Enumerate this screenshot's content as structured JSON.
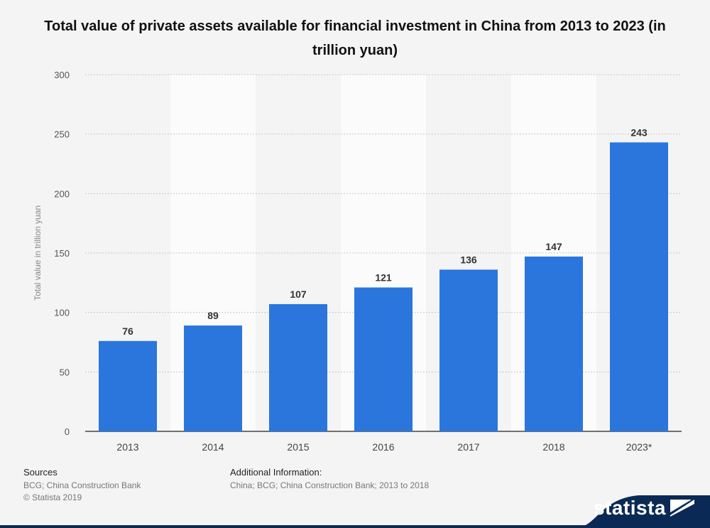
{
  "chart_data": {
    "type": "bar",
    "title": "Total value of private assets available for financial investment in China from 2013 to 2023 (in trillion yuan)",
    "ylabel": "Total value in trillion yuan",
    "xlabel": "",
    "categories": [
      "2013",
      "2014",
      "2015",
      "2016",
      "2017",
      "2018",
      "2023*"
    ],
    "values": [
      76,
      89,
      107,
      121,
      136,
      147,
      243
    ],
    "data_labels": [
      "76",
      "89",
      "107",
      "121",
      "136",
      "147",
      "243"
    ],
    "yticks": [
      "0",
      "50",
      "100",
      "150",
      "200",
      "250",
      "300"
    ],
    "ylim": [
      0,
      300
    ],
    "grid": true,
    "bar_color": "#2a76dd"
  },
  "footer": {
    "sources_label": "Sources",
    "sources_text": "BCG; China Construction Bank",
    "copyright": "© Statista 2019",
    "additional_label": "Additional Information:",
    "additional_text": "China; BCG; China Construction Bank; 2013 to 2018"
  },
  "brand": {
    "name": "statista",
    "logo_icon": "statista-logo-icon",
    "color": "#0a2a55"
  }
}
